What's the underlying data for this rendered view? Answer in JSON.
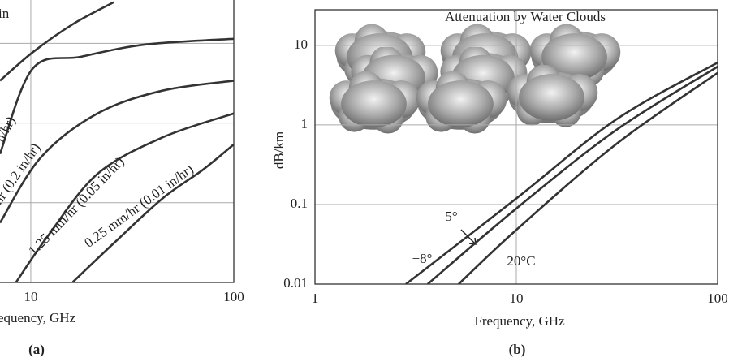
{
  "chart_data": [
    {
      "type": "line",
      "annotation": "in",
      "xlabel": "equency, GHz",
      "caption": "(a)",
      "log_x": true,
      "log_y": true,
      "xlim": [
        7.05,
        100
      ],
      "ylim": [
        0.01,
        35
      ],
      "xticks": [
        10,
        100
      ],
      "ygrid": [
        0.1,
        1,
        10
      ],
      "grid": true,
      "color": "#333333",
      "series": [
        {
          "x": [
            7.05,
            10.2,
            16.1,
            25.6
          ],
          "values": [
            3.4,
            7.7,
            17.4,
            32.8
          ]
        },
        {
          "name": "n/hr)",
          "x": [
            7.05,
            10.2,
            17.7,
            37,
            100
          ],
          "values": [
            0.41,
            4.8,
            6.8,
            9.7,
            11.4
          ]
        },
        {
          "name": "hr (0.2 in/hr)",
          "x": [
            7.05,
            11.2,
            21.3,
            44.5,
            100
          ],
          "values": [
            0.056,
            0.37,
            1.32,
            2.55,
            3.4
          ]
        },
        {
          "name": "1.25 mm/hr (0.05 in/hr)",
          "x": [
            8.47,
            12.2,
            21.3,
            44.5,
            100
          ],
          "values": [
            0.0101,
            0.039,
            0.23,
            0.66,
            1.32
          ]
        },
        {
          "name": "0.25 mm/hr (0.01 in/hr)",
          "x": [
            16.1,
            25.6,
            44.5,
            70.5,
            100
          ],
          "values": [
            0.0101,
            0.031,
            0.113,
            0.26,
            0.54
          ]
        }
      ]
    },
    {
      "type": "line",
      "title": "Attenuation by Water Clouds",
      "ylabel": "dB/km",
      "xlabel": "Frequency, GHz",
      "caption": "(b)",
      "log_x": true,
      "log_y": true,
      "xlim": [
        1,
        100
      ],
      "ylim": [
        0.01,
        28
      ],
      "xticks": [
        1,
        10,
        100
      ],
      "yticks": [
        0.01,
        0.1,
        1,
        10
      ],
      "grid": true,
      "color": "#333333",
      "series": [
        {
          "name": "−8°",
          "x": [
            2.83,
            10,
            31.5,
            100
          ],
          "values": [
            0.01,
            0.119,
            1.18,
            6.07
          ]
        },
        {
          "name": "5°",
          "x": [
            3.63,
            10,
            31.5,
            100
          ],
          "values": [
            0.01,
            0.089,
            0.87,
            5.4
          ]
        },
        {
          "name": "20°C",
          "x": [
            5.17,
            10,
            31.5,
            100
          ],
          "values": [
            0.01,
            0.048,
            0.58,
            4.5
          ]
        }
      ]
    }
  ]
}
